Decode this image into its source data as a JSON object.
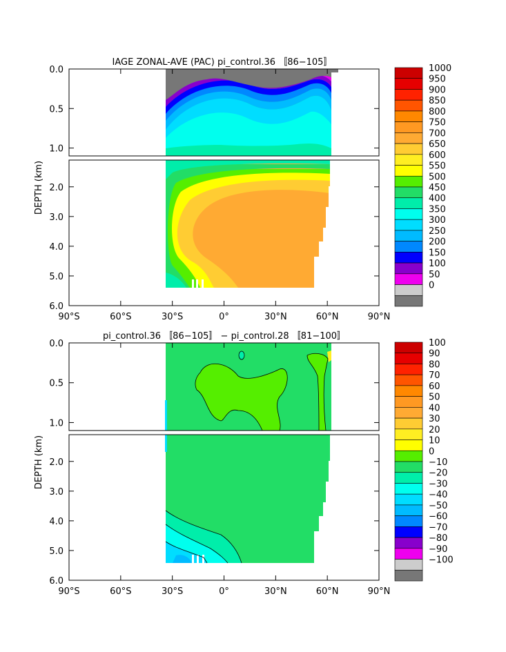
{
  "chart_data": [
    {
      "type": "heatmap",
      "title": "IAGE ZONAL-AVE (PAC) pi_control.36 〚86−105〛",
      "ylabel": "DEPTH (km)",
      "xlabel": "",
      "x_ticks": [
        "90°S",
        "60°S",
        "30°S",
        "0°",
        "30°N",
        "60°N",
        "90°N"
      ],
      "x_tick_values": [
        -90,
        -60,
        -30,
        0,
        30,
        60,
        90
      ],
      "upper_y_ticks": [
        "0.0",
        "0.5",
        "1.0"
      ],
      "upper_y_tick_values": [
        0,
        0.5,
        1.0
      ],
      "lower_y_ticks": [
        "2.0",
        "3.0",
        "4.0",
        "5.0",
        "6.0"
      ],
      "lower_y_tick_values": [
        2,
        3,
        4,
        5,
        6
      ],
      "xlim": [
        -90,
        90
      ],
      "ylim_upper": [
        0,
        1.1
      ],
      "ylim_lower": [
        1.1,
        6.0
      ],
      "colorbar_labels": [
        "1000",
        "950",
        "900",
        "850",
        "800",
        "750",
        "700",
        "650",
        "600",
        "550",
        "500",
        "450",
        "400",
        "350",
        "300",
        "250",
        "200",
        "150",
        "100",
        "50",
        "0"
      ],
      "colorbar_colors": [
        "#cc0000",
        "#e60000",
        "#ff2200",
        "#ff5500",
        "#ff8800",
        "#ff9922",
        "#ffaa33",
        "#ffcc33",
        "#ffee22",
        "#ffff00",
        "#55ee00",
        "#22dd66",
        "#00eeaa",
        "#00ffee",
        "#00ddff",
        "#00bbff",
        "#0088ff",
        "#0000ff",
        "#8800cc",
        "#ee00ee",
        "#cccccc",
        "#777777"
      ],
      "field": {
        "description_key": "age",
        "data_extent_lon": [
          -35,
          62
        ],
        "upper_profile": [
          {
            "lon": -35,
            "surface_top": 0.0,
            "gray_depth": 0.42,
            "levels": [
              0.42,
              0.6,
              0.8,
              0.95,
              1.05
            ]
          },
          {
            "lon": 5,
            "surface_top": 0.0,
            "gray_depth": 0.18,
            "levels": [
              0.28,
              0.42,
              0.6,
              0.82,
              1.05
            ]
          },
          {
            "lon": 30,
            "surface_top": 0.0,
            "gray_depth": 0.3,
            "levels": [
              0.38,
              0.5,
              0.65,
              0.85,
              1.05
            ]
          },
          {
            "lon": 50,
            "surface_top": 0.0,
            "gray_depth": 0.12,
            "levels": [
              0.2,
              0.32,
              0.5,
              0.7,
              0.95
            ]
          },
          {
            "lon": 62,
            "surface_top": 0.0,
            "gray_depth": 0.15,
            "levels": [
              0.25,
              0.4,
              0.6,
              0.8,
              1.0
            ]
          }
        ]
      }
    },
    {
      "type": "heatmap",
      "title": "pi_control.36 〚86−105〛 − pi_control.28 〚81−100〛",
      "ylabel": "DEPTH (km)",
      "xlabel": "",
      "x_ticks": [
        "90°S",
        "60°S",
        "30°S",
        "0°",
        "30°N",
        "60°N",
        "90°N"
      ],
      "x_tick_values": [
        -90,
        -60,
        -30,
        0,
        30,
        60,
        90
      ],
      "upper_y_ticks": [
        "0.0",
        "0.5",
        "1.0"
      ],
      "upper_y_tick_values": [
        0,
        0.5,
        1.0
      ],
      "lower_y_ticks": [
        "2.0",
        "3.0",
        "4.0",
        "5.0",
        "6.0"
      ],
      "lower_y_tick_values": [
        2,
        3,
        4,
        5,
        6
      ],
      "xlim": [
        -90,
        90
      ],
      "ylim_upper": [
        0,
        1.1
      ],
      "ylim_lower": [
        1.1,
        6.0
      ],
      "colorbar_labels": [
        "100",
        "90",
        "80",
        "70",
        "60",
        "50",
        "40",
        "30",
        "20",
        "10",
        "0",
        "−10",
        "−20",
        "−30",
        "−40",
        "−50",
        "−60",
        "−70",
        "−80",
        "−90",
        "−100"
      ],
      "colorbar_colors": [
        "#cc0000",
        "#e60000",
        "#ff2200",
        "#ff5500",
        "#ff8800",
        "#ff9922",
        "#ffaa33",
        "#ffcc33",
        "#ffee22",
        "#ffff00",
        "#55ee00",
        "#22dd66",
        "#00eeaa",
        "#00ffee",
        "#00ddff",
        "#00bbff",
        "#0088ff",
        "#0000ff",
        "#8800cc",
        "#ee00ee",
        "#cccccc",
        "#777777"
      ],
      "field": {
        "background_value": 5,
        "data_extent_lon": [
          -35,
          62
        ]
      }
    }
  ]
}
